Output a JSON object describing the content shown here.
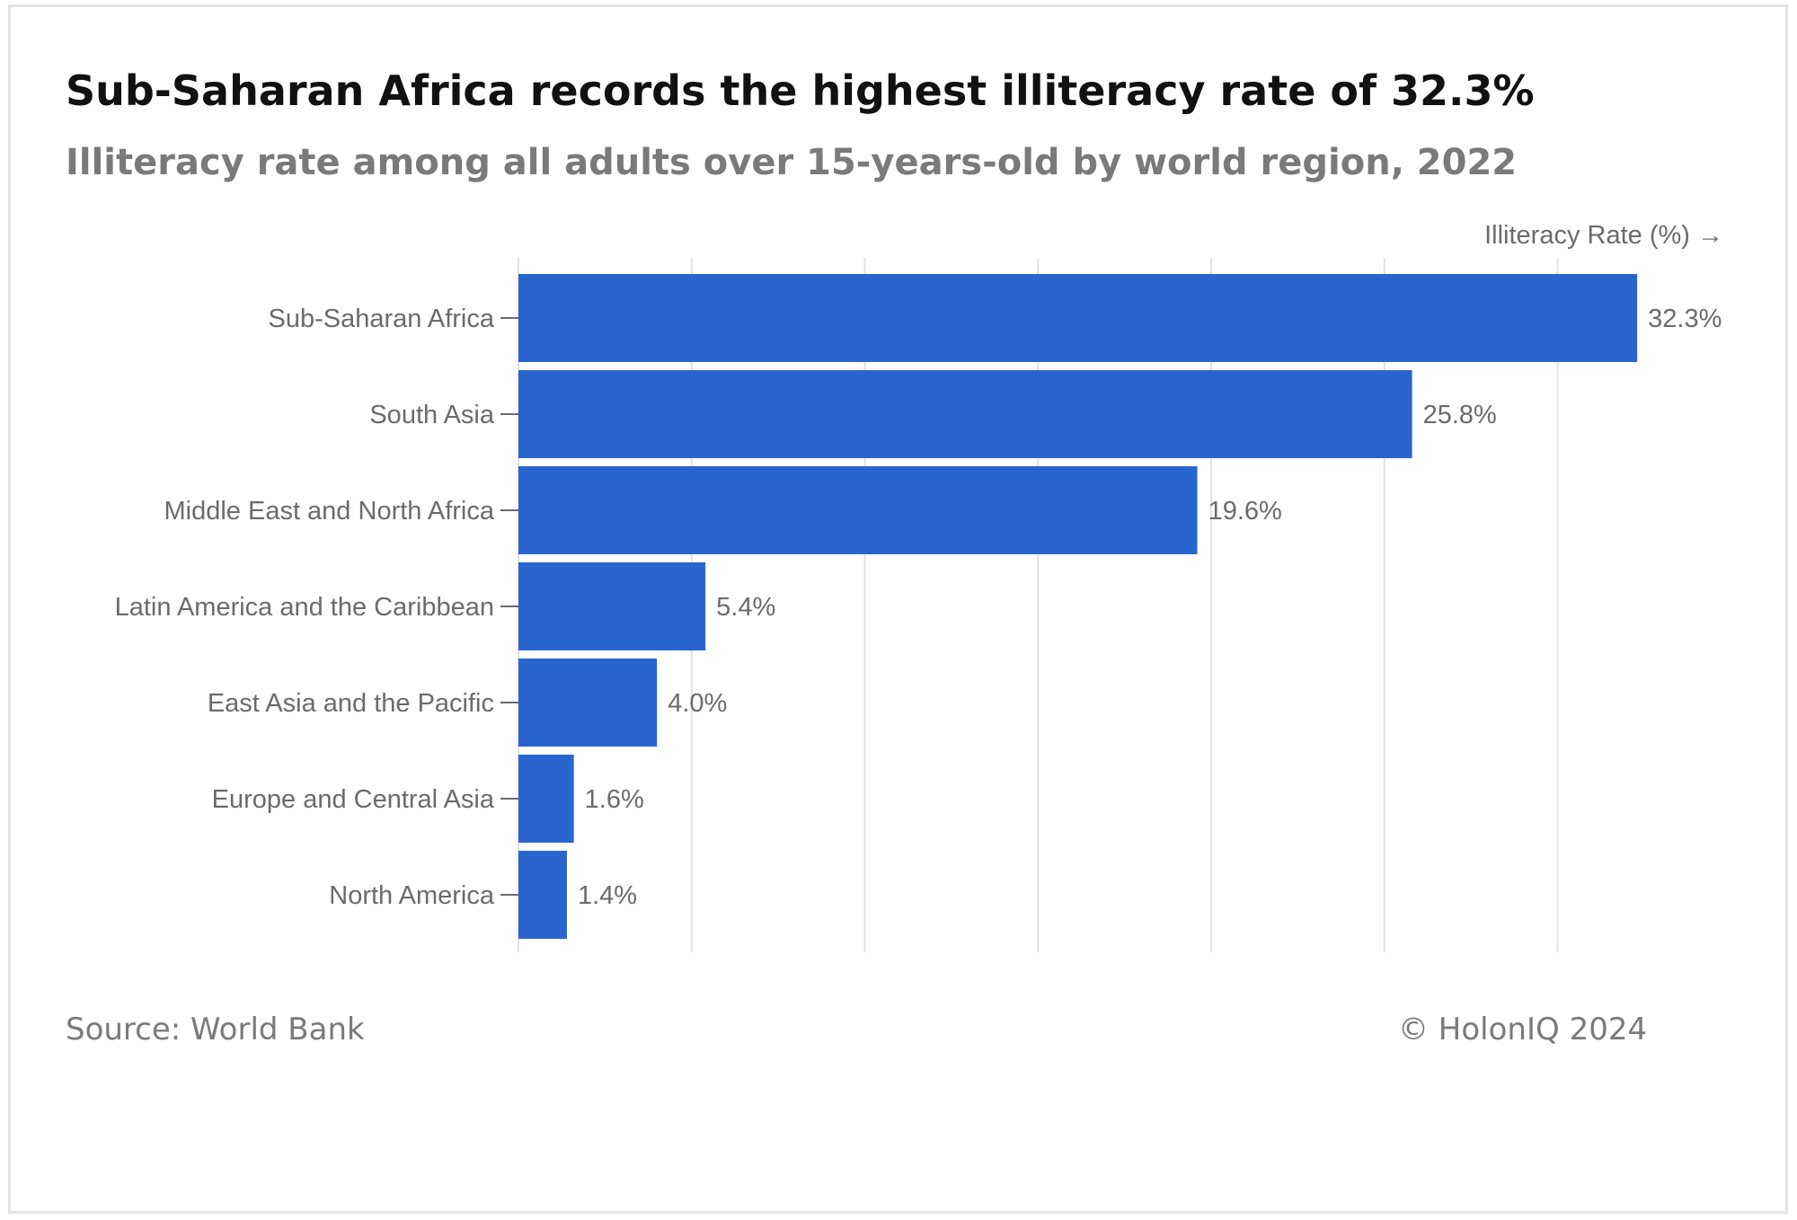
{
  "header": {
    "title": "Sub-Saharan Africa records the highest illiteracy rate of 32.3%",
    "subtitle": "Illiteracy rate among all adults over 15-years-old by world region, 2022"
  },
  "footer": {
    "source": "Source: World Bank",
    "credit": "© HolonIQ 2024"
  },
  "colors": {
    "bar": "#2965cf",
    "grid": "#e2e2e2",
    "label": "#6b6b6b"
  },
  "chart_data": {
    "type": "bar",
    "orientation": "horizontal",
    "title": "Sub-Saharan Africa records the highest illiteracy rate of 32.3%",
    "subtitle": "Illiteracy rate among all adults over 15-years-old by world region, 2022",
    "xlabel": "Illiteracy Rate (%) →",
    "ylabel": "",
    "categories": [
      "Sub-Saharan Africa",
      "South Asia",
      "Middle East and North Africa",
      "Latin America and the Caribbean",
      "East Asia and the Pacific",
      "Europe and Central Asia",
      "North America"
    ],
    "values": [
      32.3,
      25.8,
      19.6,
      5.4,
      4.0,
      1.6,
      1.4
    ],
    "data_labels": [
      "32.3%",
      "25.8%",
      "19.6%",
      "5.4%",
      "4.0%",
      "1.6%",
      "1.4%"
    ],
    "xlim": [
      0,
      35
    ],
    "grid_step": 5,
    "grid": true,
    "legend": "none"
  }
}
